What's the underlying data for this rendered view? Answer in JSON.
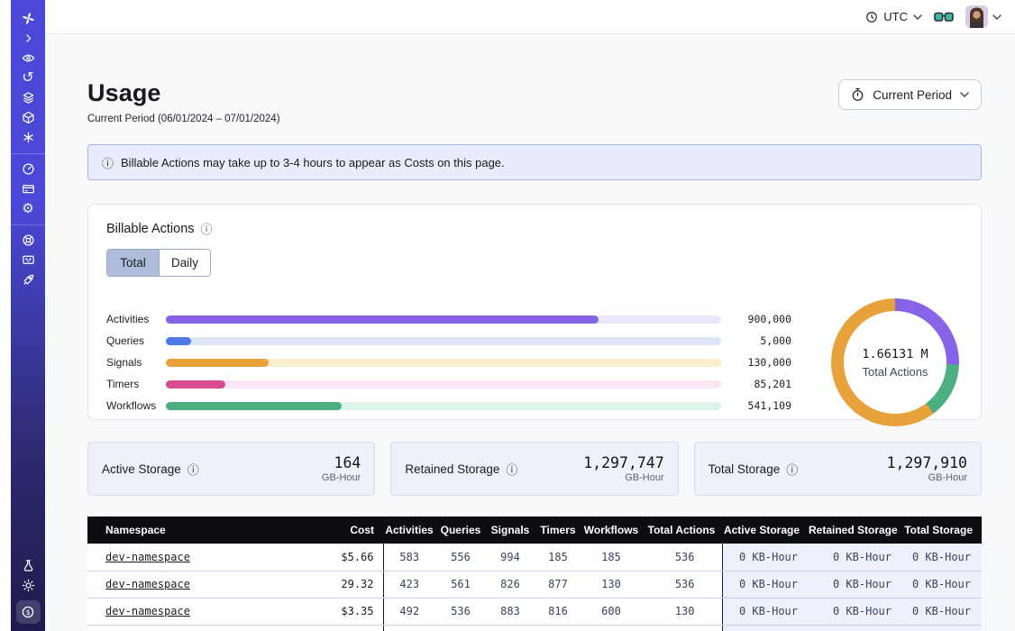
{
  "topbar": {
    "timezone_label": "UTC",
    "icons": [
      "clock-icon",
      "chevron-down-icon",
      "glasses-icon",
      "avatar",
      "chevron-down-icon"
    ]
  },
  "sidebar": {
    "icons": [
      "temporal-logo-icon",
      "collapse-chevron-icon",
      "namespaces-eye-icon",
      "history-icon",
      "layers-icon",
      "cube-icon",
      "asterisk-icon",
      "gauge-icon",
      "billing-card-icon",
      "settings-gear-icon",
      "support-lifebuoy-icon",
      "feedback-monitor-icon",
      "rocket-icon",
      "lab-flask-icon",
      "theme-sun-icon",
      "usage-coin-icon"
    ]
  },
  "page": {
    "title": "Usage",
    "subtitle": "Current Period (06/01/2024 – 07/01/2024)",
    "period_button_label": "Current Period"
  },
  "banner": {
    "text": "Billable Actions may take up to 3-4 hours to appear as Costs on this page."
  },
  "billable": {
    "title": "Billable Actions",
    "tabs": [
      {
        "label": "Total",
        "selected": true
      },
      {
        "label": "Daily",
        "selected": false
      }
    ]
  },
  "chart_data": [
    {
      "type": "bar",
      "orientation": "horizontal",
      "title": "Billable Actions (Total)",
      "categories": [
        "Activities",
        "Queries",
        "Signals",
        "Timers",
        "Workflows"
      ],
      "values": [
        900000,
        5000,
        130000,
        85201,
        541109
      ],
      "value_labels": [
        "900,000",
        "5,000",
        "130,000",
        "85,201",
        "541,109"
      ],
      "colors": [
        "#8763E8",
        "#4E7BE8",
        "#E8A23C",
        "#D74D92",
        "#4DAE80"
      ],
      "track_colors": [
        "#ECE6FA",
        "#DCE6F8",
        "#F9EFCC",
        "#FAE6F4",
        "#DDF3E8"
      ],
      "fill_percent": [
        78,
        4.5,
        18.5,
        10.7,
        31.7
      ],
      "grid": false,
      "legend": false
    },
    {
      "type": "donut",
      "center_value": "1.66131 M",
      "center_label": "Total Actions",
      "total_actions": 1661310,
      "segments": [
        {
          "name": "activities",
          "color": "#8763E8",
          "start_deg": 0,
          "end_deg": 92
        },
        {
          "name": "workflows",
          "color": "#4DAE80",
          "start_deg": 92,
          "end_deg": 143
        },
        {
          "name": "signals",
          "color": "#E8A23C",
          "start_deg": 143,
          "end_deg": 360
        }
      ]
    }
  ],
  "storage_cards": [
    {
      "label": "Active Storage",
      "value": "164",
      "unit": "GB-Hour"
    },
    {
      "label": "Retained Storage",
      "value": "1,297,747",
      "unit": "GB-Hour"
    },
    {
      "label": "Total Storage",
      "value": "1,297,910",
      "unit": "GB-Hour"
    }
  ],
  "table": {
    "columns": [
      "Namespace",
      "Cost",
      "Activities",
      "Queries",
      "Signals",
      "Timers",
      "Workflows",
      "Total Actions",
      "Active Storage",
      "Retained Storage",
      "Total Storage"
    ],
    "rows": [
      {
        "namespace": "dev-namespace",
        "cost": "$5.66",
        "activities": "583",
        "queries": "556",
        "signals": "994",
        "timers": "185",
        "workflows": "185",
        "total_actions": "536",
        "active_storage": "0 KB-Hour",
        "retained_storage": "0 KB-Hour",
        "total_storage": "0 KB-Hour"
      },
      {
        "namespace": "dev-namespace",
        "cost": "29.32",
        "activities": "423",
        "queries": "561",
        "signals": "826",
        "timers": "877",
        "workflows": "130",
        "total_actions": "536",
        "active_storage": "0 KB-Hour",
        "retained_storage": "0 KB-Hour",
        "total_storage": "0 KB-Hour"
      },
      {
        "namespace": "dev-namespace",
        "cost": "$3.35",
        "activities": "492",
        "queries": "536",
        "signals": "883",
        "timers": "816",
        "workflows": "600",
        "total_actions": "130",
        "active_storage": "0 KB-Hour",
        "retained_storage": "0 KB-Hour",
        "total_storage": "0 KB-Hour"
      }
    ]
  }
}
